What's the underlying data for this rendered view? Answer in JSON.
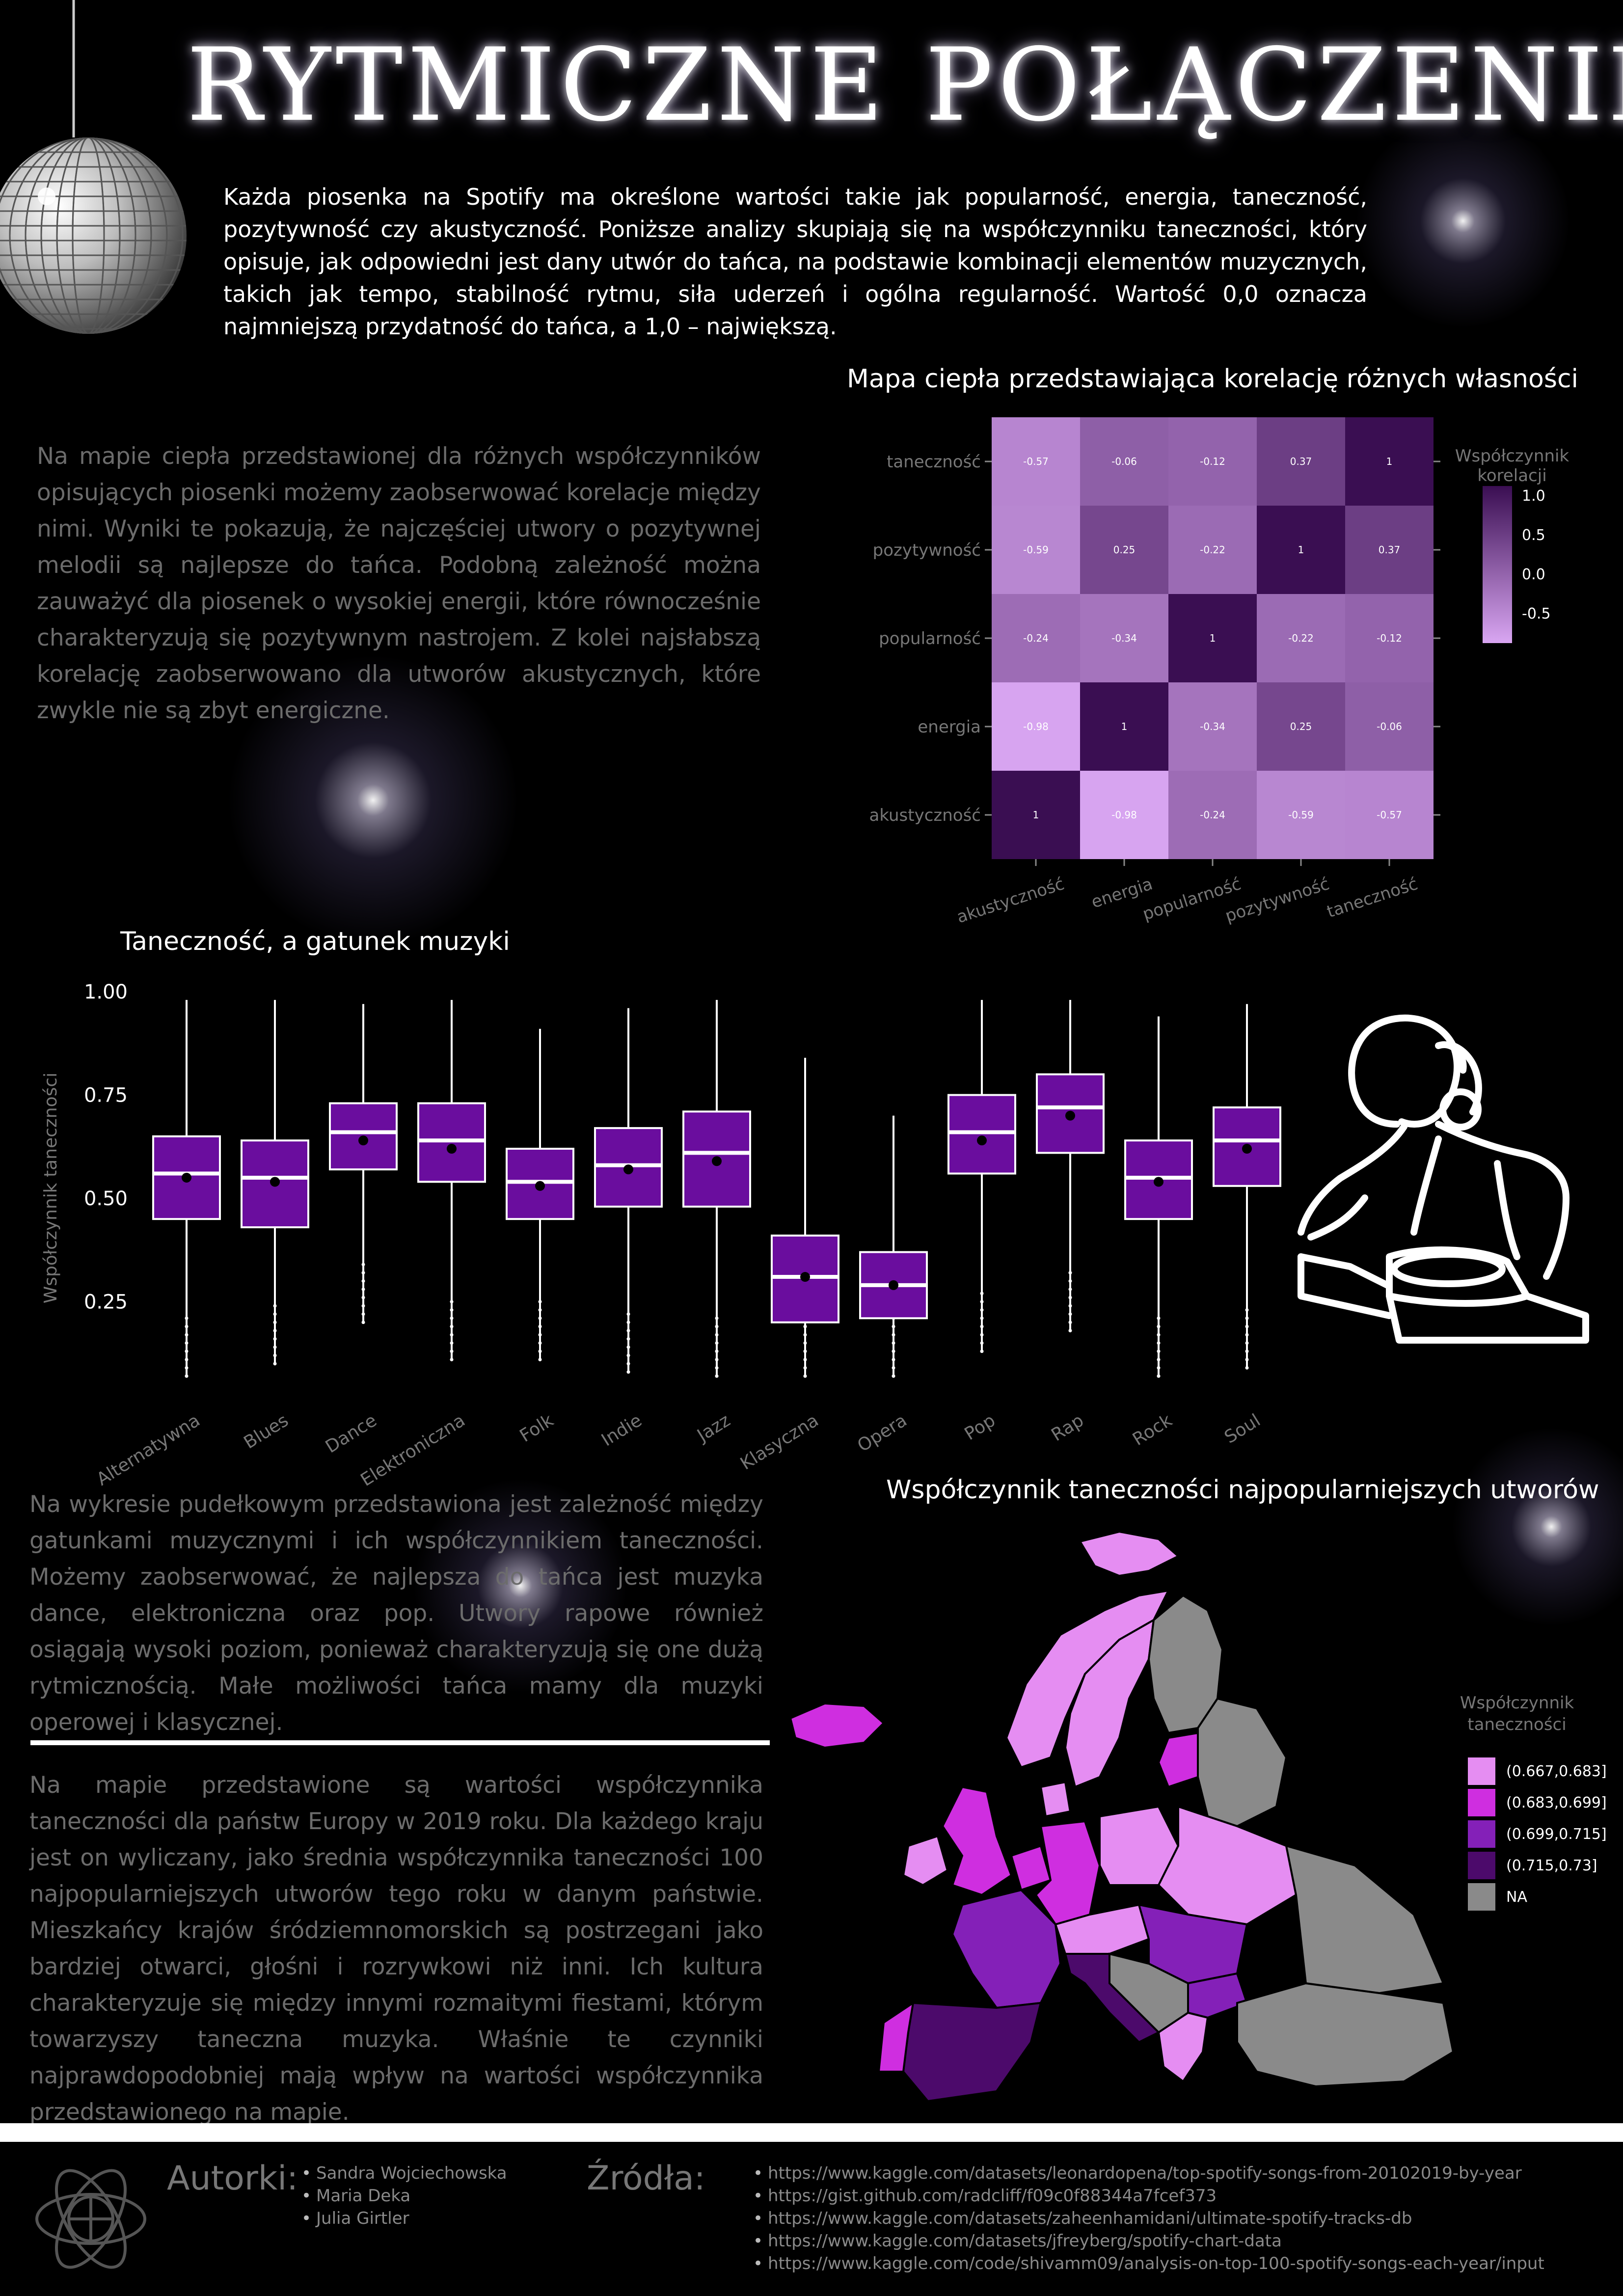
{
  "title": "RYTMICZNE POŁĄCZENIE",
  "intro": "Każda piosenka na Spotify ma określone wartości takie jak popularność, energia, taneczność, pozytywność czy akustyczność. Poniższe analizy skupiają się na współczynniku taneczności, który opisuje, jak odpowiedni jest dany utwór do tańca, na podstawie kombinacji elementów muzycznych, takich jak tempo, stabilność rytmu, siła uderzeń i ogólna regularność. Wartość 0,0 oznacza najmniejszą przydatność do tańca, a 1,0 – największą.",
  "heatmap_text": "Na mapie ciepła przedstawionej dla różnych współczynników opisujących piosenki możemy zaobserwować korelacje między nimi. Wyniki te pokazują, że najczęściej utwory o pozytywnej melodii są najlepsze do tańca. Podobną zależność można zauważyć dla piosenek o wysokiej energii, które równocześnie charakteryzują się pozytywnym nastrojem. Z kolei najsłabszą korelację zaobserwowano dla utworów akustycznych, które zwykle nie są zbyt energiczne.",
  "boxplot_text": "Na wykresie pudełkowym przedstawiona jest zależność między gatunkami muzycznymi i ich współczynnikiem taneczności. Możemy zaobserwować, że najlepsza do tańca jest muzyka dance, elektroniczna oraz pop. Utwory rapowe również osiągają wysoki poziom, ponieważ charakteryzują się one dużą rytmicznością. Małe możliwości tańca mamy dla muzyki operowej i klasycznej.",
  "map_text": "Na mapie przedstawione są wartości współczynnika taneczności dla państw Europy w 2019 roku. Dla każdego kraju jest on wyliczany, jako średnia współczynnika taneczności 100 najpopularniejszych utworów tego roku w danym państwie. Mieszkańcy krajów śródziemnomorskich są postrzegani jako bardziej otwarci, głośni i rozrywkowi niż inni. Ich kultura charakteryzuje się między innymi rozmaitymi fiestami, którym towarzyszy taneczna muzyka. Właśnie te czynniki najprawdopodobniej mają wpływ na wartości współczynnika przedstawionego na mapie.",
  "footer": {
    "authors_label": "Autorki:",
    "authors": [
      "Sandra Wojciechowska",
      "Maria Deka",
      "Julia Girtler"
    ],
    "sources_label": "Źródła:",
    "sources": [
      "https://www.kaggle.com/datasets/leonardopena/top-spotify-songs-from-20102019-by-year",
      "https://gist.github.com/radcliff/f09c0f88344a7fcef373",
      "https://www.kaggle.com/datasets/zaheenhamidani/ultimate-spotify-tracks-db",
      "https://www.kaggle.com/datasets/jfreyberg/spotify-chart-data",
      "https://www.kaggle.com/code/shivamm09/analysis-on-top-100-spotify-songs-each-year/input"
    ]
  },
  "chart_data": [
    {
      "type": "heatmap",
      "title": "Mapa ciepła przedstawiająca korelację różnych własności",
      "x_labels": [
        "akustyczność",
        "energia",
        "popularność",
        "pozytywność",
        "taneczność"
      ],
      "y_labels": [
        "taneczność",
        "pozytywność",
        "popularność",
        "energia",
        "akustyczność"
      ],
      "values": [
        [
          -0.57,
          -0.06,
          -0.12,
          0.37,
          1
        ],
        [
          -0.59,
          0.25,
          -0.22,
          1,
          0.37
        ],
        [
          -0.24,
          -0.34,
          1,
          -0.22,
          -0.12
        ],
        [
          -0.98,
          1,
          -0.34,
          0.25,
          -0.06
        ],
        [
          1,
          -0.98,
          -0.24,
          -0.59,
          -0.57
        ]
      ],
      "legend_title": [
        "Współczynnik",
        "korelacji"
      ],
      "legend_ticks": [
        "1.0",
        "0.5",
        "0.0",
        "-0.5"
      ],
      "color_low": "#d9a6f2",
      "color_high": "#3a0e52"
    },
    {
      "type": "box",
      "title": "Taneczność, a gatunek muzyki",
      "ylabel": "Współczynnik taneczności",
      "y_ticks": [
        "0.25",
        "0.50",
        "0.75",
        "1.00"
      ],
      "ylim": [
        0.05,
        1.0
      ],
      "categories": [
        "Alternatywna",
        "Blues",
        "Dance",
        "Elektroniczna",
        "Folk",
        "Indie",
        "Jazz",
        "Klasyczna",
        "Opera",
        "Pop",
        "Rap",
        "Rock",
        "Soul"
      ],
      "stats": [
        {
          "min": 0.07,
          "q1": 0.45,
          "median": 0.56,
          "q3": 0.65,
          "max": 0.98,
          "mean": 0.55
        },
        {
          "min": 0.1,
          "q1": 0.43,
          "median": 0.55,
          "q3": 0.64,
          "max": 0.98,
          "mean": 0.54
        },
        {
          "min": 0.2,
          "q1": 0.57,
          "median": 0.66,
          "q3": 0.73,
          "max": 0.97,
          "mean": 0.64
        },
        {
          "min": 0.11,
          "q1": 0.54,
          "median": 0.64,
          "q3": 0.73,
          "max": 0.98,
          "mean": 0.62
        },
        {
          "min": 0.11,
          "q1": 0.45,
          "median": 0.54,
          "q3": 0.62,
          "max": 0.91,
          "mean": 0.53
        },
        {
          "min": 0.08,
          "q1": 0.48,
          "median": 0.58,
          "q3": 0.67,
          "max": 0.96,
          "mean": 0.57
        },
        {
          "min": 0.07,
          "q1": 0.48,
          "median": 0.61,
          "q3": 0.71,
          "max": 0.98,
          "mean": 0.59
        },
        {
          "min": 0.07,
          "q1": 0.2,
          "median": 0.31,
          "q3": 0.41,
          "max": 0.84,
          "mean": 0.31
        },
        {
          "min": 0.07,
          "q1": 0.21,
          "median": 0.29,
          "q3": 0.37,
          "max": 0.7,
          "mean": 0.29
        },
        {
          "min": 0.13,
          "q1": 0.56,
          "median": 0.66,
          "q3": 0.75,
          "max": 0.98,
          "mean": 0.64
        },
        {
          "min": 0.18,
          "q1": 0.61,
          "median": 0.72,
          "q3": 0.8,
          "max": 0.98,
          "mean": 0.7
        },
        {
          "min": 0.07,
          "q1": 0.45,
          "median": 0.55,
          "q3": 0.64,
          "max": 0.94,
          "mean": 0.54
        },
        {
          "min": 0.09,
          "q1": 0.53,
          "median": 0.64,
          "q3": 0.72,
          "max": 0.97,
          "mean": 0.62
        }
      ],
      "box_color": "#6a0d9e"
    },
    {
      "type": "choropleth",
      "title": "Współczynnik taneczności najpopularniejszych utworów",
      "legend_title": [
        "Współczynnik",
        "taneczności"
      ],
      "legend": [
        {
          "label": "(0.667,0.683]",
          "color": "#e58df2"
        },
        {
          "label": "(0.683,0.699]",
          "color": "#cf2ee0"
        },
        {
          "label": "(0.699,0.715]",
          "color": "#8420b8"
        },
        {
          "label": "(0.715,0.73]",
          "color": "#4c0a6b"
        },
        {
          "label": "NA",
          "color": "#8a8a8a"
        }
      ]
    }
  ]
}
